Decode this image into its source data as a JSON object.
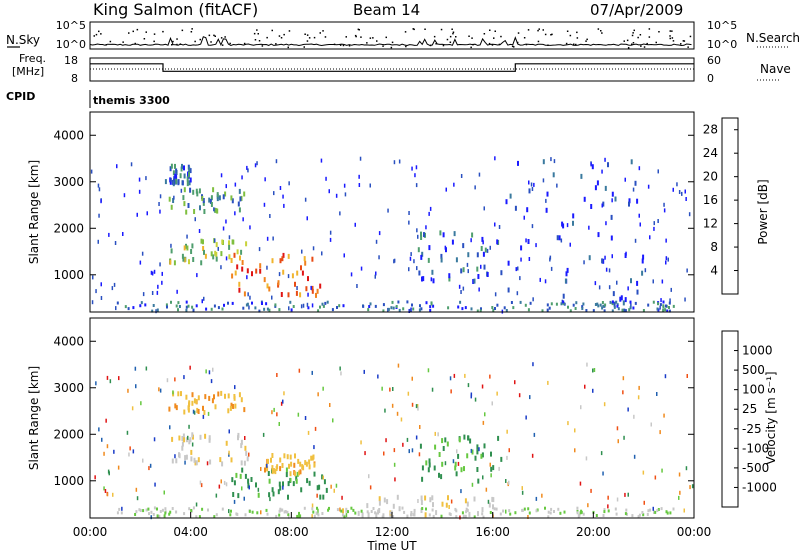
{
  "header": {
    "station": "King Salmon (fitACF)",
    "beam": "Beam 14",
    "date": "07/Apr/2009"
  },
  "left_labels": {
    "nsky": "N.Sky",
    "freq": "Freq.",
    "freq_unit": "[MHz]",
    "cpid": "CPID"
  },
  "right_labels": {
    "nsearch": "N.Search",
    "nave": "Nave"
  },
  "cpid_text": "themis 3300",
  "x_axis": {
    "label": "Time UT",
    "ticks": [
      "00:00",
      "04:00",
      "08:00",
      "12:00",
      "16:00",
      "20:00",
      "00:00"
    ]
  },
  "chart_data": [
    {
      "type": "line",
      "name": "noise",
      "left_ticks": [
        "10^5",
        "10^0"
      ],
      "right_ticks": [
        "10^5",
        "10^0"
      ],
      "x_range": [
        0,
        24
      ]
    },
    {
      "type": "line",
      "name": "frequency",
      "left_ticks": [
        "18",
        "8"
      ],
      "right_ticks": [
        "60",
        "0"
      ],
      "ylim": [
        8,
        18
      ],
      "steps": [
        {
          "x0": 0.0,
          "x1": 2.9,
          "value": 15.5
        },
        {
          "x0": 2.9,
          "x1": 16.9,
          "value": 12.2
        },
        {
          "x0": 16.9,
          "x1": 24.0,
          "value": 15.5
        }
      ]
    },
    {
      "type": "heatmap",
      "name": "power",
      "xlabel": "",
      "ylabel": "Slant Range [km]",
      "x_range": [
        0,
        24
      ],
      "ylim": [
        200,
        4500
      ],
      "yticks": [
        1000,
        2000,
        3000,
        4000
      ],
      "colorbar": {
        "label": "Power [dB]",
        "ticks": [
          "4",
          "8",
          "12",
          "16",
          "20",
          "24",
          "28"
        ],
        "range": [
          0,
          30
        ],
        "colors": [
          "#1a1aff",
          "#2a50c0",
          "#3a7a9e",
          "#4f9e6e",
          "#7fbf3f",
          "#c8d23a",
          "#f0b42d",
          "#f0821e",
          "#e84b14",
          "#e01414"
        ]
      },
      "blobs": [
        {
          "t0": 5.6,
          "t1": 9.4,
          "r0": 600,
          "r1": 1500,
          "level": 24
        },
        {
          "t0": 3.1,
          "t1": 6.3,
          "r0": 1300,
          "r1": 1800,
          "level": 14
        },
        {
          "t0": 3.1,
          "t1": 6.1,
          "r0": 2400,
          "r1": 2900,
          "level": 9
        },
        {
          "t0": 2.9,
          "t1": 4.0,
          "r0": 3000,
          "r1": 3400,
          "level": 6
        },
        {
          "t0": 13.0,
          "t1": 16.5,
          "r0": 900,
          "r1": 2000,
          "level": 5
        },
        {
          "t0": 16.5,
          "t1": 22.0,
          "r0": 300,
          "r1": 3500,
          "level": 4
        }
      ]
    },
    {
      "type": "heatmap",
      "name": "velocity",
      "xlabel": "Time UT",
      "ylabel": "Slant Range [km]",
      "x_range": [
        0,
        24
      ],
      "ylim": [
        200,
        4500
      ],
      "yticks": [
        1000,
        2000,
        3000,
        4000
      ],
      "colorbar": {
        "label": "Velocity [m s⁻¹]",
        "ticks": [
          "1000",
          "500",
          "100",
          "25",
          "-25",
          "-100",
          "-500",
          "-1000"
        ],
        "colors": [
          "#1a3cc8",
          "#2060b0",
          "#2f8f4f",
          "#66c840",
          "#c8c8c8",
          "#f0c040",
          "#f08a1e",
          "#f05014",
          "#e01414"
        ]
      },
      "blobs": [
        {
          "t0": 5.6,
          "t1": 9.4,
          "r0": 700,
          "r1": 1300,
          "level": "100"
        },
        {
          "t0": 6.8,
          "t1": 9.0,
          "r0": 1200,
          "r1": 1600,
          "level": "-100"
        },
        {
          "t0": 3.1,
          "t1": 6.3,
          "r0": 1400,
          "r1": 2050,
          "level": "-25"
        },
        {
          "t0": 3.1,
          "t1": 6.1,
          "r0": 2500,
          "r1": 2950,
          "level": "-100"
        },
        {
          "t0": 13.0,
          "t1": 16.5,
          "r0": 1000,
          "r1": 2000,
          "level": "100"
        },
        {
          "t0": 10.0,
          "t1": 16.0,
          "r0": 300,
          "r1": 700,
          "level": "-25"
        }
      ]
    }
  ]
}
